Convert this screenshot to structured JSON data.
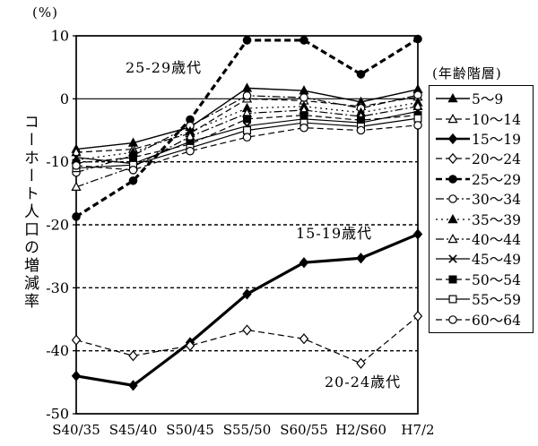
{
  "page": {
    "background": "#ffffff",
    "ink": "#000000"
  },
  "chart_data": {
    "type": "line",
    "unit_label": "(%)",
    "ylabel": "コーホート人口の増減率",
    "xlabel": "",
    "ylim": [
      -50,
      10
    ],
    "yticks": [
      10,
      0,
      -10,
      -20,
      -30,
      -40,
      -50
    ],
    "grid": "horizontal dashed at -10,-20,-30,-40; solid at 0; full frame box",
    "legend_title": "(年齢階層)",
    "legend_position": "right outside",
    "categories": [
      "S40/35",
      "S45/40",
      "S50/45",
      "S55/50",
      "S60/55",
      "H2/S60",
      "H7/2"
    ],
    "series": [
      {
        "name": "5〜9",
        "marker": "triangle-filled",
        "line": "solid",
        "width": 1.4,
        "values": [
          -8.0,
          -7.0,
          -4.5,
          1.7,
          1.3,
          -0.5,
          1.5
        ]
      },
      {
        "name": "10〜14",
        "marker": "triangle-open",
        "line": "dashed",
        "width": 1.2,
        "values": [
          -8.5,
          -8.0,
          -5.5,
          0.0,
          -0.3,
          -1.2,
          0.3
        ]
      },
      {
        "name": "15〜19",
        "marker": "diamond-filled",
        "line": "solid",
        "width": 3.2,
        "values": [
          -44.0,
          -45.5,
          -38.7,
          -31.0,
          -26.0,
          -25.3,
          -21.5
        ]
      },
      {
        "name": "20〜24",
        "marker": "diamond-open",
        "line": "dashed",
        "width": 1.2,
        "values": [
          -38.3,
          -40.8,
          -39.2,
          -36.7,
          -38.1,
          -42.0,
          -34.5
        ]
      },
      {
        "name": "25〜29",
        "marker": "circle-filled",
        "line": "dashed",
        "width": 3.2,
        "values": [
          -18.7,
          -13.0,
          -3.3,
          9.3,
          9.3,
          3.9,
          9.5
        ]
      },
      {
        "name": "30〜34",
        "marker": "circle-open",
        "line": "dashdot",
        "width": 1.2,
        "values": [
          -11.7,
          -9.0,
          -4.3,
          0.5,
          0.2,
          -1.5,
          0.6
        ]
      },
      {
        "name": "35〜39",
        "marker": "triangle-filled",
        "line": "dotted",
        "width": 1.2,
        "values": [
          -9.7,
          -8.5,
          -5.2,
          -1.5,
          -1.2,
          -2.2,
          -0.6
        ]
      },
      {
        "name": "40〜44",
        "marker": "triangle-open",
        "line": "dashdot",
        "width": 1.2,
        "values": [
          -14.0,
          -10.8,
          -6.0,
          -2.3,
          -1.8,
          -2.8,
          -1.2
        ]
      },
      {
        "name": "45〜49",
        "marker": "x-cross",
        "line": "solid",
        "width": 1.2,
        "values": [
          -9.3,
          -10.3,
          -6.8,
          -4.3,
          -3.2,
          -3.8,
          -2.0
        ]
      },
      {
        "name": "50〜54",
        "marker": "square-filled",
        "line": "dashed",
        "width": 1.2,
        "values": [
          -10.2,
          -9.3,
          -7.2,
          -3.2,
          -2.6,
          -3.4,
          -2.6
        ]
      },
      {
        "name": "55〜59",
        "marker": "square-open",
        "line": "solid",
        "width": 1.2,
        "values": [
          -11.0,
          -10.5,
          -7.8,
          -5.0,
          -3.8,
          -4.4,
          -3.1
        ]
      },
      {
        "name": "60〜64",
        "marker": "circle-open",
        "line": "dashed",
        "width": 1.2,
        "values": [
          -10.6,
          -11.3,
          -8.3,
          -6.1,
          -4.6,
          -5.0,
          -4.2
        ]
      }
    ],
    "annotations": [
      {
        "text": "25-29歳代",
        "x": 140,
        "y": 62
      },
      {
        "text": "15-19歳代",
        "x": 330,
        "y": 247
      },
      {
        "text": "20-24歳代",
        "x": 362,
        "y": 413
      }
    ]
  }
}
